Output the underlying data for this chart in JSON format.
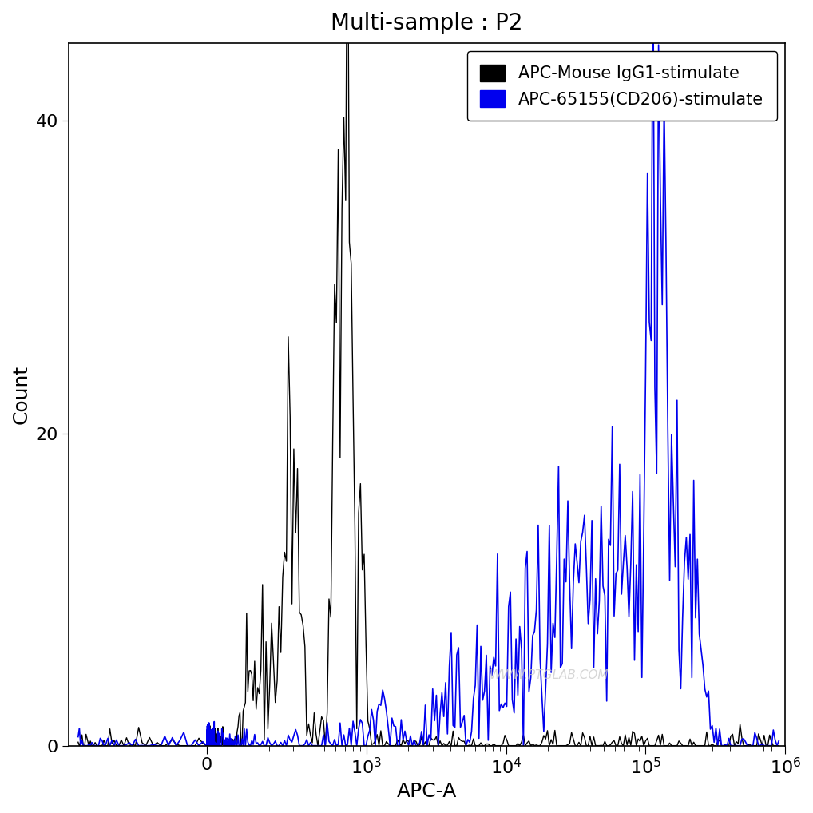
{
  "title": "Multi-sample : P2",
  "xlabel": "APC-A",
  "ylabel": "Count",
  "ylim": [
    0,
    45
  ],
  "yticks": [
    0,
    20,
    40
  ],
  "legend_labels": [
    "APC-Mouse IgG1-stimulate",
    "APC-65155(CD206)-stimulate"
  ],
  "legend_colors": [
    "#000000",
    "#0000ee"
  ],
  "background_color": "#ffffff",
  "title_fontsize": 20,
  "axis_fontsize": 18,
  "tick_fontsize": 16,
  "legend_fontsize": 15,
  "watermark": "WWW.PTGLAB.COM",
  "linthresh": 200,
  "linscale": 0.4
}
